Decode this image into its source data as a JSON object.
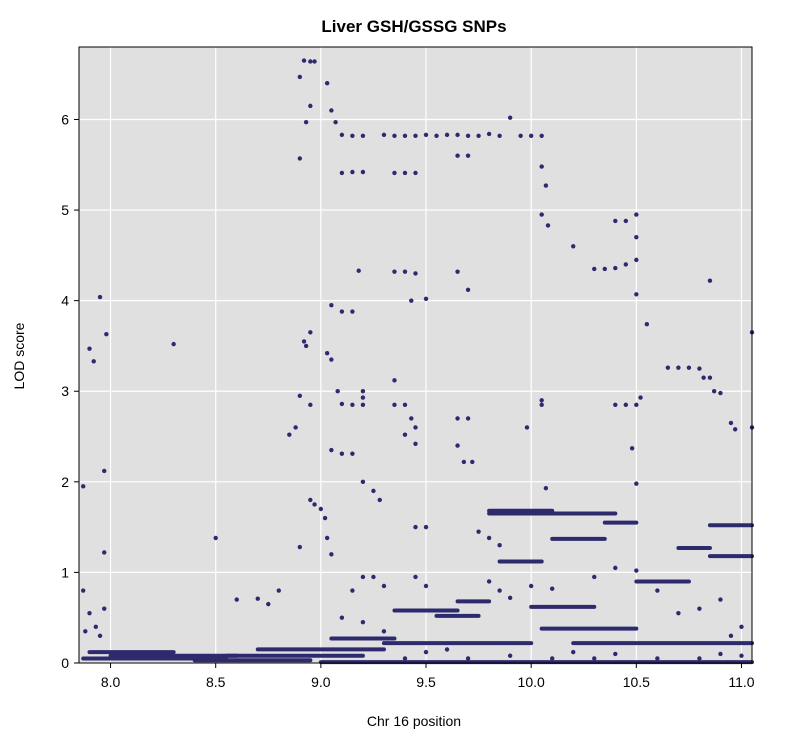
{
  "chart_data": {
    "type": "scatter",
    "title": "Liver GSH/GSSG SNPs",
    "xlabel": "Chr 16 position",
    "ylabel": "LOD score",
    "xlim": [
      7.85,
      11.05
    ],
    "ylim": [
      0,
      6.8
    ],
    "xticks": [
      "8.0",
      "8.5",
      "9.0",
      "9.5",
      "10.0",
      "10.5",
      "11.0"
    ],
    "yticks": [
      "0",
      "1",
      "2",
      "3",
      "4",
      "5",
      "6"
    ],
    "grid": true,
    "legend": "none",
    "background_color": "#e0e0e0",
    "point_color": "#2e2a6e",
    "segments": [
      {
        "x": [
          7.87,
          8.55
        ],
        "y": 0.05
      },
      {
        "x": [
          7.9,
          8.3
        ],
        "y": 0.12
      },
      {
        "x": [
          8.0,
          8.6
        ],
        "y": 0.08
      },
      {
        "x": [
          8.4,
          8.95
        ],
        "y": 0.03
      },
      {
        "x": [
          8.55,
          9.2
        ],
        "y": 0.08
      },
      {
        "x": [
          8.7,
          9.3
        ],
        "y": 0.15
      },
      {
        "x": [
          9.0,
          11.05
        ],
        "y": 0.01
      },
      {
        "x": [
          9.05,
          9.35
        ],
        "y": 0.27
      },
      {
        "x": [
          9.35,
          9.65
        ],
        "y": 0.58
      },
      {
        "x": [
          9.3,
          10.0
        ],
        "y": 0.22
      },
      {
        "x": [
          9.8,
          10.4
        ],
        "y": 1.65
      },
      {
        "x": [
          9.8,
          10.1
        ],
        "y": 1.68
      },
      {
        "x": [
          10.05,
          10.5
        ],
        "y": 0.38
      },
      {
        "x": [
          10.2,
          11.05
        ],
        "y": 0.22
      },
      {
        "x": [
          10.35,
          10.5
        ],
        "y": 1.55
      },
      {
        "x": [
          10.7,
          10.85
        ],
        "y": 1.27
      },
      {
        "x": [
          10.85,
          11.05
        ],
        "y": 1.52
      },
      {
        "x": [
          10.85,
          11.05
        ],
        "y": 1.18
      },
      {
        "x": [
          9.85,
          10.05
        ],
        "y": 1.12
      },
      {
        "x": [
          10.1,
          10.35
        ],
        "y": 1.37
      },
      {
        "x": [
          10.5,
          10.75
        ],
        "y": 0.9
      },
      {
        "x": [
          9.65,
          9.8
        ],
        "y": 0.68
      },
      {
        "x": [
          10.0,
          10.3
        ],
        "y": 0.62
      },
      {
        "x": [
          9.55,
          9.75
        ],
        "y": 0.52
      }
    ],
    "points": [
      [
        7.87,
        1.95
      ],
      [
        7.9,
        3.47
      ],
      [
        7.92,
        3.33
      ],
      [
        7.95,
        4.04
      ],
      [
        7.97,
        2.12
      ],
      [
        7.98,
        3.63
      ],
      [
        7.97,
        1.22
      ],
      [
        7.87,
        0.8
      ],
      [
        7.9,
        0.55
      ],
      [
        7.93,
        0.4
      ],
      [
        7.95,
        0.3
      ],
      [
        7.97,
        0.6
      ],
      [
        7.88,
        0.35
      ],
      [
        8.3,
        3.52
      ],
      [
        8.5,
        1.38
      ],
      [
        8.6,
        0.7
      ],
      [
        8.7,
        0.71
      ],
      [
        8.75,
        0.65
      ],
      [
        8.8,
        0.8
      ],
      [
        8.9,
        6.47
      ],
      [
        8.92,
        6.65
      ],
      [
        8.95,
        6.64
      ],
      [
        8.97,
        6.64
      ],
      [
        8.93,
        5.97
      ],
      [
        8.95,
        6.15
      ],
      [
        8.9,
        5.57
      ],
      [
        8.95,
        3.65
      ],
      [
        8.92,
        3.55
      ],
      [
        8.93,
        3.5
      ],
      [
        8.95,
        2.85
      ],
      [
        8.9,
        2.95
      ],
      [
        8.88,
        2.6
      ],
      [
        8.85,
        2.52
      ],
      [
        8.95,
        1.8
      ],
      [
        8.97,
        1.75
      ],
      [
        9.0,
        1.7
      ],
      [
        9.02,
        1.6
      ],
      [
        9.03,
        1.38
      ],
      [
        9.05,
        1.2
      ],
      [
        8.9,
        1.28
      ],
      [
        9.03,
        6.4
      ],
      [
        9.05,
        6.1
      ],
      [
        9.07,
        5.97
      ],
      [
        9.1,
        5.83
      ],
      [
        9.15,
        5.82
      ],
      [
        9.2,
        5.82
      ],
      [
        9.3,
        5.83
      ],
      [
        9.35,
        5.82
      ],
      [
        9.4,
        5.82
      ],
      [
        9.45,
        5.82
      ],
      [
        9.5,
        5.83
      ],
      [
        9.55,
        5.82
      ],
      [
        9.6,
        5.83
      ],
      [
        9.65,
        5.83
      ],
      [
        9.7,
        5.82
      ],
      [
        9.75,
        5.82
      ],
      [
        9.8,
        5.84
      ],
      [
        9.85,
        5.82
      ],
      [
        9.9,
        6.02
      ],
      [
        9.95,
        5.82
      ],
      [
        10.0,
        5.82
      ],
      [
        10.05,
        5.82
      ],
      [
        9.1,
        5.41
      ],
      [
        9.15,
        5.42
      ],
      [
        9.2,
        5.42
      ],
      [
        9.35,
        5.41
      ],
      [
        9.4,
        5.41
      ],
      [
        9.45,
        5.41
      ],
      [
        9.65,
        5.6
      ],
      [
        9.7,
        5.6
      ],
      [
        10.05,
        5.48
      ],
      [
        10.07,
        5.27
      ],
      [
        10.08,
        4.83
      ],
      [
        10.05,
        4.95
      ],
      [
        10.2,
        4.6
      ],
      [
        10.4,
        4.88
      ],
      [
        10.45,
        4.88
      ],
      [
        10.5,
        4.95
      ],
      [
        10.5,
        4.7
      ],
      [
        10.3,
        4.35
      ],
      [
        10.35,
        4.35
      ],
      [
        10.4,
        4.36
      ],
      [
        10.45,
        4.4
      ],
      [
        10.5,
        4.45
      ],
      [
        10.5,
        4.07
      ],
      [
        10.55,
        3.74
      ],
      [
        9.05,
        3.95
      ],
      [
        9.1,
        3.88
      ],
      [
        9.15,
        3.88
      ],
      [
        9.18,
        4.33
      ],
      [
        9.35,
        4.32
      ],
      [
        9.4,
        4.32
      ],
      [
        9.45,
        4.3
      ],
      [
        9.43,
        4.0
      ],
      [
        9.5,
        4.02
      ],
      [
        9.65,
        4.32
      ],
      [
        9.7,
        4.12
      ],
      [
        9.03,
        3.42
      ],
      [
        9.05,
        3.35
      ],
      [
        9.08,
        3.0
      ],
      [
        9.1,
        2.86
      ],
      [
        9.15,
        2.85
      ],
      [
        9.2,
        2.85
      ],
      [
        9.35,
        2.85
      ],
      [
        9.4,
        2.85
      ],
      [
        9.35,
        3.12
      ],
      [
        9.43,
        2.7
      ],
      [
        9.45,
        2.6
      ],
      [
        9.45,
        2.42
      ],
      [
        9.4,
        2.52
      ],
      [
        9.2,
        2.93
      ],
      [
        9.2,
        3.0
      ],
      [
        9.05,
        2.35
      ],
      [
        9.1,
        2.31
      ],
      [
        9.15,
        2.31
      ],
      [
        9.2,
        2.0
      ],
      [
        9.25,
        1.9
      ],
      [
        9.28,
        1.8
      ],
      [
        9.65,
        2.7
      ],
      [
        9.7,
        2.7
      ],
      [
        9.65,
        2.4
      ],
      [
        9.68,
        2.22
      ],
      [
        9.72,
        2.22
      ],
      [
        9.98,
        2.6
      ],
      [
        10.05,
        2.9
      ],
      [
        10.05,
        2.85
      ],
      [
        10.07,
        1.93
      ],
      [
        10.4,
        2.85
      ],
      [
        10.45,
        2.85
      ],
      [
        10.5,
        2.85
      ],
      [
        10.52,
        2.93
      ],
      [
        10.48,
        2.37
      ],
      [
        10.5,
        1.98
      ],
      [
        10.65,
        3.26
      ],
      [
        10.7,
        3.26
      ],
      [
        10.75,
        3.26
      ],
      [
        10.8,
        3.25
      ],
      [
        10.82,
        3.15
      ],
      [
        10.85,
        3.15
      ],
      [
        10.87,
        3.0
      ],
      [
        10.9,
        2.98
      ],
      [
        10.95,
        2.65
      ],
      [
        10.97,
        2.58
      ],
      [
        11.05,
        2.6
      ],
      [
        11.05,
        3.65
      ],
      [
        10.85,
        4.22
      ],
      [
        9.45,
        1.5
      ],
      [
        9.5,
        1.5
      ],
      [
        9.75,
        1.45
      ],
      [
        9.8,
        1.38
      ],
      [
        9.85,
        1.3
      ],
      [
        9.2,
        0.95
      ],
      [
        9.25,
        0.95
      ],
      [
        9.3,
        0.85
      ],
      [
        9.15,
        0.8
      ],
      [
        9.45,
        0.95
      ],
      [
        9.5,
        0.85
      ],
      [
        9.8,
        0.9
      ],
      [
        9.85,
        0.8
      ],
      [
        9.9,
        0.72
      ],
      [
        10.0,
        0.85
      ],
      [
        10.1,
        0.82
      ],
      [
        10.3,
        0.95
      ],
      [
        10.4,
        1.05
      ],
      [
        10.5,
        1.02
      ],
      [
        10.6,
        0.8
      ],
      [
        10.7,
        0.55
      ],
      [
        10.8,
        0.6
      ],
      [
        10.9,
        0.7
      ],
      [
        11.0,
        0.4
      ],
      [
        10.95,
        0.3
      ],
      [
        10.9,
        0.1
      ],
      [
        11.0,
        0.08
      ],
      [
        10.8,
        0.05
      ],
      [
        10.6,
        0.05
      ],
      [
        10.4,
        0.1
      ],
      [
        10.3,
        0.05
      ],
      [
        10.2,
        0.12
      ],
      [
        10.1,
        0.05
      ],
      [
        9.9,
        0.08
      ],
      [
        9.7,
        0.05
      ],
      [
        9.6,
        0.15
      ],
      [
        9.5,
        0.12
      ],
      [
        9.4,
        0.05
      ],
      [
        9.3,
        0.35
      ],
      [
        9.2,
        0.45
      ],
      [
        9.1,
        0.5
      ]
    ]
  }
}
